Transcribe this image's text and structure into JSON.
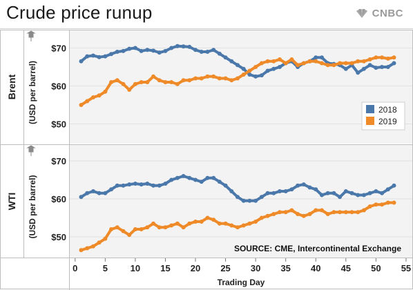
{
  "header": {
    "title": "Crude price runup",
    "logo_text": "CNBC"
  },
  "source_note": "SOURCE: CME, Intercontinental Exchange",
  "colors": {
    "series_2018": "#4a78aa",
    "series_2019": "#ef8a28",
    "panel_bg": "#f3f3f3",
    "grid": "#e2e2e2"
  },
  "chart_data": {
    "type": "line",
    "xlabel": "Trading Day",
    "xlim": [
      0,
      55
    ],
    "xticks": [
      0,
      5,
      10,
      15,
      20,
      25,
      30,
      35,
      40,
      45,
      50,
      55
    ],
    "x": [
      1,
      2,
      3,
      4,
      5,
      6,
      7,
      8,
      9,
      10,
      11,
      12,
      13,
      14,
      15,
      16,
      17,
      18,
      19,
      20,
      21,
      22,
      23,
      24,
      25,
      26,
      27,
      28,
      29,
      30,
      31,
      32,
      33,
      34,
      35,
      36,
      37,
      38,
      39,
      40,
      41,
      42,
      43,
      44,
      45,
      46,
      47,
      48,
      49,
      50,
      51,
      52,
      53
    ],
    "legend": {
      "entries": [
        "2018",
        "2019"
      ],
      "position": "right"
    },
    "panels": [
      {
        "row_label": "Brent",
        "ylabel": "(USD per barrel)",
        "ylim": [
          45,
          72
        ],
        "yticks": [
          50,
          60,
          70
        ],
        "ytick_labels": [
          "$50",
          "$60",
          "$70"
        ],
        "series": [
          {
            "name": "2018",
            "values": [
              66.5,
              67.8,
              68.0,
              67.6,
              67.8,
              68.4,
              69.0,
              69.2,
              69.8,
              70.0,
              69.2,
              69.5,
              69.3,
              68.8,
              69.2,
              70.0,
              70.5,
              70.4,
              70.3,
              69.5,
              69.0,
              69.0,
              69.5,
              68.5,
              67.5,
              66.5,
              65.5,
              64.5,
              63.0,
              62.5,
              62.8,
              64.0,
              64.5,
              65.0,
              66.0,
              66.5,
              65.0,
              66.0,
              66.5,
              67.5,
              67.5,
              66.0,
              65.8,
              65.5,
              64.5,
              65.5,
              63.5,
              64.5,
              65.5,
              64.8,
              65.0,
              65.0,
              66.0
            ]
          },
          {
            "name": "2019",
            "values": [
              55.0,
              56.0,
              57.0,
              57.5,
              58.5,
              61.0,
              61.5,
              60.5,
              59.0,
              60.5,
              61.0,
              61.0,
              62.5,
              61.5,
              61.0,
              61.0,
              60.5,
              61.5,
              61.5,
              62.0,
              62.0,
              62.5,
              62.5,
              62.0,
              62.0,
              61.5,
              62.0,
              63.0,
              64.0,
              65.0,
              66.0,
              66.5,
              66.5,
              67.0,
              66.0,
              67.0,
              65.5,
              66.0,
              66.5,
              66.5,
              66.0,
              65.5,
              65.5,
              66.0,
              66.0,
              66.0,
              66.5,
              66.5,
              67.0,
              67.5,
              67.5,
              67.2,
              67.5
            ]
          }
        ]
      },
      {
        "row_label": "WTI",
        "ylabel": "(USD per barrel)",
        "ylim": [
          45,
          72
        ],
        "yticks": [
          50,
          60,
          70
        ],
        "ytick_labels": [
          "$50",
          "$60",
          "$70"
        ],
        "series": [
          {
            "name": "2018",
            "values": [
              60.5,
              61.5,
              62.0,
              61.5,
              61.5,
              62.5,
              63.5,
              63.5,
              63.8,
              64.0,
              63.8,
              64.0,
              63.5,
              63.5,
              64.0,
              65.0,
              65.5,
              66.0,
              65.5,
              65.0,
              64.5,
              65.5,
              65.5,
              64.5,
              63.5,
              62.0,
              60.5,
              59.5,
              59.5,
              59.5,
              60.5,
              61.5,
              61.5,
              62.0,
              62.0,
              62.5,
              63.5,
              63.8,
              63.0,
              62.5,
              61.0,
              61.5,
              61.5,
              60.5,
              62.0,
              61.5,
              61.0,
              61.0,
              61.5,
              62.0,
              61.5,
              62.5,
              63.5
            ]
          },
          {
            "name": "2019",
            "values": [
              46.5,
              47.0,
              47.5,
              48.5,
              49.5,
              52.0,
              52.5,
              51.5,
              50.5,
              52.0,
              52.0,
              52.5,
              53.5,
              52.5,
              52.5,
              53.0,
              53.5,
              52.5,
              53.5,
              54.0,
              54.0,
              55.0,
              54.5,
              53.5,
              53.5,
              53.0,
              52.5,
              53.0,
              53.5,
              54.0,
              55.0,
              55.5,
              56.0,
              56.5,
              56.5,
              57.0,
              56.0,
              55.5,
              56.0,
              57.0,
              57.0,
              56.0,
              56.5,
              56.5,
              56.5,
              56.5,
              56.5,
              57.0,
              58.0,
              58.5,
              58.5,
              59.0,
              59.0
            ]
          }
        ]
      }
    ]
  }
}
